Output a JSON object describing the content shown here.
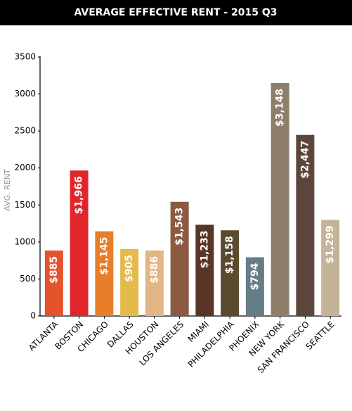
{
  "chart_data": {
    "type": "bar",
    "title": "AVERAGE EFFECTIVE RENT - 2015 Q3",
    "ylabel": "AVG. RENT",
    "categories": [
      "ATLANTA",
      "BOSTON",
      "CHICAGO",
      "DALLAS",
      "HOUSTON",
      "LOS ANGELES",
      "MIAMI",
      "PHILADELPHIA",
      "PHOENIX",
      "NEW YORK",
      "SAN FRANCISCO",
      "SEATTLE"
    ],
    "values": [
      885,
      1966,
      1145,
      905,
      886,
      1543,
      1233,
      1158,
      794,
      3148,
      2447,
      1299
    ],
    "value_labels": [
      "$885",
      "$1,966",
      "$1,145",
      "$905",
      "$886",
      "$1,543",
      "$1,233",
      "$1,158",
      "$794",
      "$3,148",
      "$2,447",
      "$1,299"
    ],
    "colors": [
      "#e5532d",
      "#e0262b",
      "#e87d2a",
      "#e6b94c",
      "#e4b584",
      "#8b5a40",
      "#5a3526",
      "#5b4a2e",
      "#657d86",
      "#8d7f6c",
      "#5c463b",
      "#c4b497"
    ],
    "ylim": [
      0,
      3500
    ],
    "yticks": [
      0,
      500,
      1000,
      1500,
      2000,
      2500,
      3000,
      3500
    ],
    "grid": false
  }
}
